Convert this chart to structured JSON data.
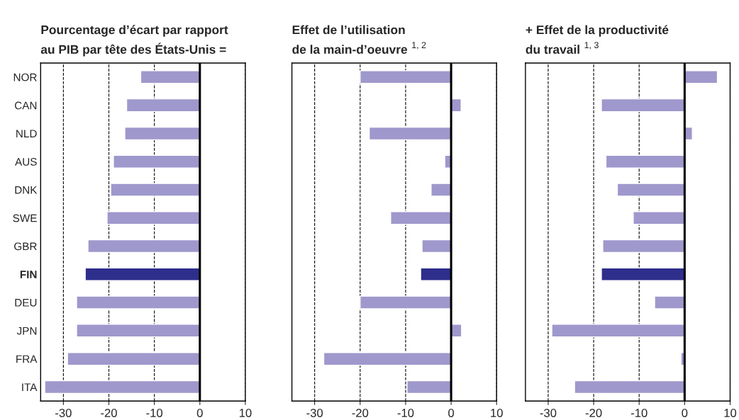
{
  "chart_data": [
    {
      "type": "bar",
      "orientation": "horizontal",
      "title": "Pourcentage d’écart par rapport\nau PIB par tête des États-Unis =",
      "categories": [
        "NOR",
        "CAN",
        "NLD",
        "AUS",
        "DNK",
        "SWE",
        "GBR",
        "FIN",
        "DEU",
        "JPN",
        "FRA",
        "ITA"
      ],
      "values": [
        -13.0,
        -16.1,
        -16.5,
        -19.0,
        -19.6,
        -20.4,
        -24.6,
        -25.2,
        -27.1,
        -27.1,
        -29.1,
        -34.1
      ],
      "colors": [
        "#9f98cc",
        "#9f98cc",
        "#9f98cc",
        "#9f98cc",
        "#9f98cc",
        "#9f98cc",
        "#9f98cc",
        "#2e2e8c",
        "#9f98cc",
        "#9f98cc",
        "#9f98cc",
        "#9f98cc"
      ],
      "xlim": [
        -35,
        10
      ],
      "xticks": [
        -30,
        -20,
        -10,
        0,
        10
      ],
      "grid": "x",
      "ref_lines": [
        {
          "axis": "x",
          "value": 0,
          "color": "#000000",
          "line_style": "solid"
        }
      ]
    },
    {
      "type": "bar",
      "orientation": "horizontal",
      "title": "Effet de l’utilisation\nde la main-d’oeuvre $^{1, 2}$",
      "categories": [
        null,
        null,
        null,
        null,
        null,
        null,
        null,
        null,
        null,
        null,
        null,
        null
      ],
      "values": [
        -20.0,
        2.2,
        -18.0,
        -1.4,
        -4.4,
        -13.3,
        -6.4,
        -6.7,
        -20.0,
        2.3,
        -28.0,
        -9.7
      ],
      "colors": [
        "#9f98cc",
        "#9f98cc",
        "#9f98cc",
        "#9f98cc",
        "#9f98cc",
        "#9f98cc",
        "#9f98cc",
        "#2e2e8c",
        "#9f98cc",
        "#9f98cc",
        "#9f98cc",
        "#9f98cc"
      ],
      "xlim": [
        -35,
        10
      ],
      "xticks": [
        -30,
        -20,
        -10,
        0,
        10
      ],
      "grid": "x",
      "tick_labels": "x",
      "ref_lines": [
        {
          "axis": "x",
          "value": 0,
          "color": "#000000",
          "line_style": "solid"
        }
      ]
    },
    {
      "type": "bar",
      "orientation": "horizontal",
      "title": "+ Effet de la productivité\ndu travail $^{1, 3}$",
      "categories": [
        null,
        null,
        null,
        null,
        null,
        null,
        null,
        null,
        null,
        null,
        null,
        null
      ],
      "values": [
        7.2,
        -18.3,
        1.7,
        -17.3,
        -14.8,
        -11.3,
        -18.0,
        -18.3,
        -6.6,
        -29.2,
        -0.8,
        -24.2
      ],
      "colors": [
        "#9f98cc",
        "#9f98cc",
        "#9f98cc",
        "#9f98cc",
        "#9f98cc",
        "#9f98cc",
        "#9f98cc",
        "#2e2e8c",
        "#9f98cc",
        "#9f98cc",
        "#9f98cc",
        "#9f98cc"
      ],
      "xlim": [
        -35,
        10
      ],
      "xticks": [
        -30,
        -20,
        -10,
        0,
        10
      ],
      "grid": "x",
      "tick_labels": "x",
      "ref_lines": [
        {
          "axis": "x",
          "value": 0,
          "color": "#000000",
          "line_style": "solid"
        }
      ]
    }
  ]
}
